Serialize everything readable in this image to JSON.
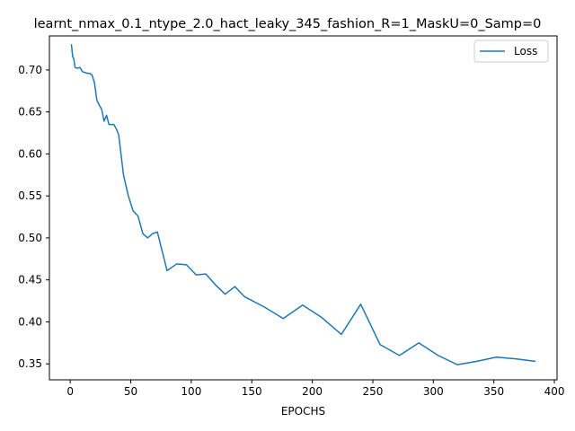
{
  "chart_data": {
    "type": "line",
    "title": "learnt_nmax_0.1_ntype_2.0_hact_leaky_345_fashion_R=1_MaskU=0_Samp=0",
    "xlabel": "EPOCHS",
    "ylabel": "",
    "xlim": [
      -17.2,
      402.2
    ],
    "ylim": [
      0.331,
      0.7405
    ],
    "xticks": [
      0,
      50,
      100,
      150,
      200,
      250,
      300,
      350,
      400
    ],
    "yticks": [
      0.35,
      0.4,
      0.45,
      0.5,
      0.55,
      0.6,
      0.65,
      0.7
    ],
    "ytick_labels": [
      "0.35",
      "0.40",
      "0.45",
      "0.50",
      "0.55",
      "0.60",
      "0.65",
      "0.70"
    ],
    "grid": false,
    "legend_position": "top-right",
    "series": [
      {
        "name": "Loss",
        "color": "#1f77b4",
        "x": [
          1,
          2,
          3,
          4,
          6,
          8,
          10,
          12,
          14,
          16,
          18,
          20,
          22,
          24,
          26,
          28,
          30,
          32,
          34,
          36,
          38,
          40,
          44,
          48,
          52,
          56,
          60,
          64,
          68,
          72,
          80,
          88,
          96,
          104,
          112,
          120,
          128,
          136,
          144,
          160,
          176,
          192,
          208,
          224,
          240,
          256,
          272,
          288,
          304,
          320,
          336,
          352,
          368,
          384
        ],
        "y": [
          0.73,
          0.716,
          0.713,
          0.703,
          0.702,
          0.703,
          0.698,
          0.697,
          0.696,
          0.696,
          0.694,
          0.685,
          0.664,
          0.658,
          0.653,
          0.639,
          0.646,
          0.635,
          0.635,
          0.635,
          0.63,
          0.623,
          0.575,
          0.55,
          0.532,
          0.526,
          0.505,
          0.5,
          0.505,
          0.507,
          0.461,
          0.469,
          0.468,
          0.456,
          0.457,
          0.444,
          0.433,
          0.442,
          0.43,
          0.418,
          0.404,
          0.42,
          0.405,
          0.385,
          0.421,
          0.373,
          0.36,
          0.375,
          0.36,
          0.349,
          0.353,
          0.358,
          0.356,
          0.353
        ]
      }
    ]
  }
}
